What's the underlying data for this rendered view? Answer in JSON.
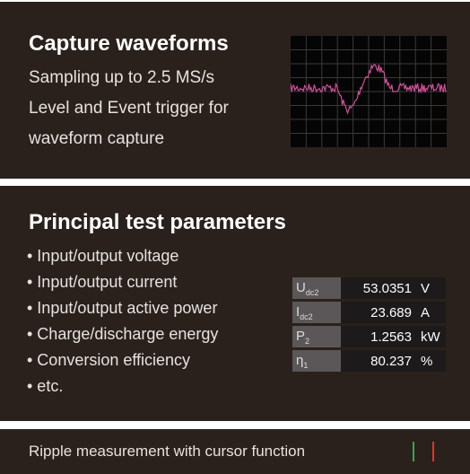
{
  "sections": [
    {
      "title": "Capture waveforms",
      "lines": [
        "Sampling up to 2.5 MS/s",
        "Level and Event trigger for",
        "waveform capture"
      ]
    },
    {
      "title": "Principal test parameters",
      "bullets": [
        "• Input/output voltage",
        "• Input/output current",
        "• Input/output active power",
        "• Charge/discharge energy",
        "• Conversion efficiency",
        "• etc."
      ],
      "readings": [
        {
          "symbol": "U",
          "subscript": "dc2",
          "value": "53.0351",
          "unit": "V"
        },
        {
          "symbol": "I",
          "subscript": "dc2",
          "value": "23.689",
          "unit": "A"
        },
        {
          "symbol": "P",
          "subscript": "2",
          "value": "1.2563",
          "unit": "kW"
        },
        {
          "symbol": "η",
          "subscript": "1",
          "value": "80.237",
          "unit": "%"
        }
      ]
    },
    {
      "text": "Ripple measurement with cursor function"
    }
  ]
}
